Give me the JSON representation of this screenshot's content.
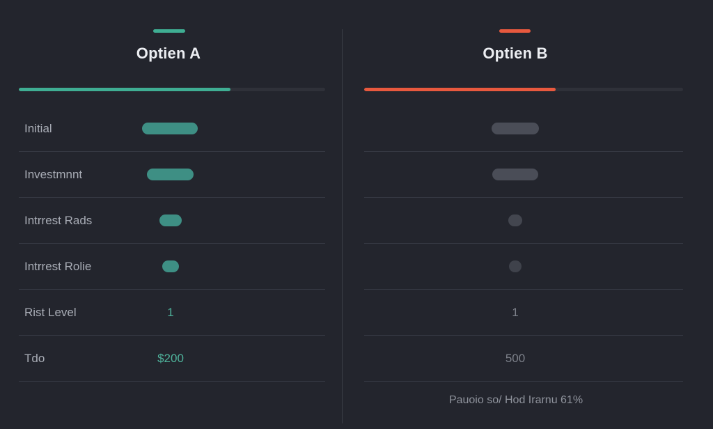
{
  "colors": {
    "background": "#23252d",
    "option_a_accent": "#3fae93",
    "option_b_accent": "#e8593e",
    "pill_a": "#3e8f84",
    "pill_b": "#4a4d57"
  },
  "option_a": {
    "title": "Optien A",
    "progress_fraction": 0.69,
    "rows": [
      {
        "label": "Initial",
        "value": ""
      },
      {
        "label": "Investmnnt",
        "value": ""
      },
      {
        "label": "Intrrest Rads",
        "value": ""
      },
      {
        "label": "Intrrest Rolie",
        "value": ""
      },
      {
        "label": "Rist Level",
        "value": "1"
      },
      {
        "label": "Tdo",
        "value": "$200"
      }
    ]
  },
  "option_b": {
    "title": "Optien B",
    "progress_fraction": 0.6,
    "rows": [
      {
        "value": ""
      },
      {
        "value": ""
      },
      {
        "value": ""
      },
      {
        "value": ""
      },
      {
        "value": "1"
      },
      {
        "value": "500"
      }
    ],
    "footer_note": "Pauoio so/ Hod Irarnu 61%"
  }
}
